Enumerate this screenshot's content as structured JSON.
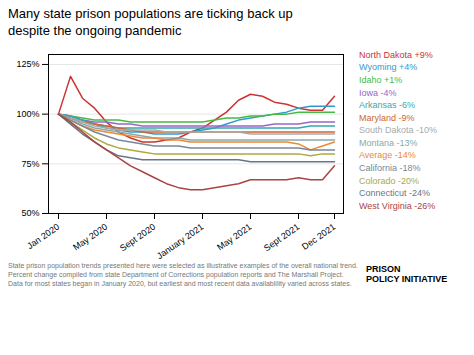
{
  "chart_data": {
    "type": "line",
    "title": "Many state prison populations are ticking back up\ndespite the ongoing pandemic",
    "caption": "State prison population trends presented here were selected as illustrative examples of the overall national trend.\nPercent change compiled from state Department of Corrections population reports and The Marshall Project.\nData for most states began in January 2020, but earliest and most recent data availablility varied across states.",
    "annotations": [
      "PRISON\nPOLICY INITIATIVE"
    ],
    "categories": [
      "Jan 2020",
      null,
      null,
      null,
      "May 2020",
      null,
      null,
      null,
      "Sept 2020",
      null,
      null,
      null,
      "January 2021",
      null,
      null,
      null,
      "May 2021",
      null,
      null,
      null,
      "Sept 2021",
      null,
      null,
      "Dec 2021"
    ],
    "series": [
      {
        "name": "North Dakota +9%",
        "color": "#cc3333",
        "values": [
          100,
          119,
          108,
          103,
          96,
          91,
          88,
          86,
          86,
          87,
          88,
          91,
          93,
          97,
          101,
          107,
          110,
          109,
          106,
          105,
          103,
          102,
          102,
          109
        ]
      },
      {
        "name": "Wyoming +4%",
        "color": "#3399cc",
        "values": [
          100,
          99,
          97,
          95,
          93,
          92,
          91,
          91,
          90,
          90,
          90,
          91,
          92,
          93,
          95,
          97,
          98,
          99,
          100,
          101,
          103,
          104,
          104,
          104
        ]
      },
      {
        "name": "Idaho +1%",
        "color": "#44bb44",
        "values": [
          100,
          99,
          98,
          97,
          97,
          97,
          96,
          96,
          96,
          96,
          96,
          96,
          96,
          97,
          98,
          98,
          99,
          99,
          100,
          100,
          101,
          101,
          101,
          101
        ]
      },
      {
        "name": "Iowa -4%",
        "color": "#9966cc",
        "values": [
          100,
          99,
          97,
          96,
          96,
          95,
          95,
          94,
          94,
          94,
          94,
          94,
          94,
          94,
          94,
          94,
          94,
          94,
          95,
          95,
          95,
          96,
          96,
          96
        ]
      },
      {
        "name": "Arkansas -6%",
        "color": "#33aaaa",
        "values": [
          100,
          99,
          97,
          95,
          94,
          93,
          93,
          93,
          93,
          93,
          93,
          93,
          93,
          93,
          93,
          93,
          93,
          93,
          93,
          93,
          93,
          94,
          94,
          94
        ]
      },
      {
        "name": "Maryland -9%",
        "color": "#cc6633",
        "values": [
          100,
          98,
          96,
          95,
          94,
          93,
          92,
          91,
          91,
          91,
          91,
          91,
          91,
          91,
          91,
          91,
          91,
          91,
          91,
          91,
          91,
          91,
          91,
          91
        ]
      },
      {
        "name": "South Dakota -10%",
        "color": "#aaaaaa",
        "values": [
          100,
          98,
          96,
          94,
          93,
          92,
          92,
          92,
          92,
          91,
          91,
          91,
          91,
          91,
          91,
          91,
          90,
          90,
          90,
          90,
          90,
          90,
          90,
          90
        ]
      },
      {
        "name": "Montana -13%",
        "color": "#88aaaa",
        "values": [
          100,
          98,
          95,
          93,
          92,
          91,
          90,
          89,
          88,
          88,
          88,
          87,
          87,
          87,
          87,
          87,
          87,
          87,
          87,
          87,
          87,
          87,
          87,
          87
        ]
      },
      {
        "name": "Average -14%",
        "color": "#ee8833",
        "values": [
          100,
          97,
          94,
          92,
          91,
          90,
          89,
          88,
          88,
          87,
          87,
          86,
          86,
          86,
          86,
          86,
          86,
          86,
          86,
          86,
          85,
          82,
          84,
          86
        ]
      },
      {
        "name": "California -18%",
        "color": "#778899",
        "values": [
          100,
          97,
          94,
          91,
          89,
          87,
          86,
          85,
          84,
          84,
          84,
          83,
          83,
          83,
          83,
          83,
          83,
          83,
          83,
          83,
          83,
          82,
          82,
          82
        ]
      },
      {
        "name": "Colorado -20%",
        "color": "#aaaa44",
        "values": [
          100,
          96,
          92,
          88,
          85,
          83,
          82,
          81,
          80,
          80,
          80,
          80,
          80,
          80,
          80,
          80,
          80,
          80,
          80,
          80,
          80,
          79,
          80,
          80
        ]
      },
      {
        "name": "Connecticut -24%",
        "color": "#667788",
        "values": [
          100,
          95,
          90,
          86,
          82,
          79,
          78,
          77,
          77,
          77,
          77,
          77,
          77,
          77,
          77,
          77,
          76,
          76,
          76,
          76,
          76,
          76,
          76,
          76
        ]
      },
      {
        "name": "West Virginia -26%",
        "color": "#aa4444",
        "values": [
          100,
          96,
          91,
          86,
          82,
          78,
          74,
          71,
          68,
          65,
          63,
          62,
          62,
          63,
          64,
          65,
          67,
          67,
          67,
          67,
          68,
          67,
          67,
          74
        ]
      }
    ],
    "ylim": [
      50,
      130
    ],
    "yticks": [
      {
        "value": 50,
        "label": "50%"
      },
      {
        "value": 75,
        "label": "75%"
      },
      {
        "value": 100,
        "label": "100%"
      },
      {
        "value": 125,
        "label": "125%"
      }
    ],
    "grid": true,
    "legend": "right"
  }
}
